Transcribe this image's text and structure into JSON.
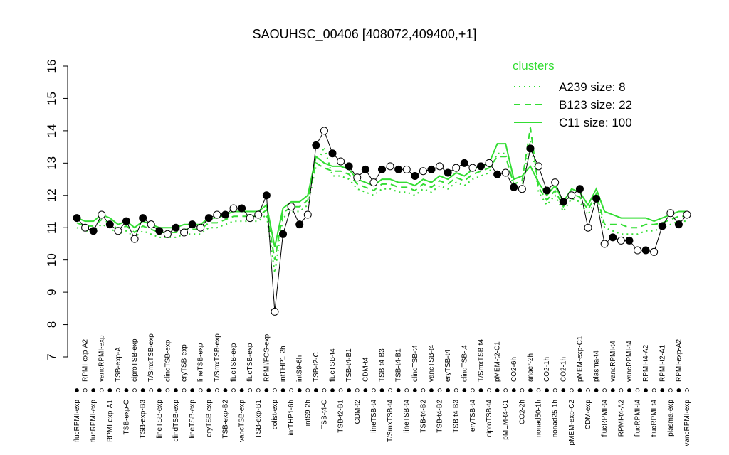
{
  "chart_data": {
    "type": "line",
    "title": "SAOUHSC_00406 [408072,409400,+1]",
    "ylim": [
      7,
      16
    ],
    "yticks": [
      7,
      8,
      9,
      10,
      11,
      12,
      13,
      14,
      15,
      16
    ],
    "categories": [
      "flucRPMI-exp",
      "RPMI-exp-A2",
      "flucRPMI-exp",
      "vancRPMI-exp",
      "RPMI-exp-A1",
      "TSB-exp-A",
      "TSB-exp-C",
      "ciproTSB-exp",
      "TSB-exp-B3",
      "T/SmxTSB-exp",
      "lineTSB-exp",
      "clindTSB-exp",
      "clindTSB-exp",
      "eryTSB-exp",
      "lineTSB-exp",
      "lineTSB-exp",
      "eryTSB-exp",
      "T/SmxTSB-exp",
      "TSB-exp-B2",
      "flucTSB-exp",
      "vancTSB-exp",
      "flucTSB-exp",
      "TSB-exp-B1",
      "RPMI/FCS-exp",
      "colist-exp",
      "intTHP1-2h",
      "intTHP1-6h",
      "intS9-6h",
      "intS9-2h",
      "TSB-t2-C",
      "TSB-t4-C",
      "flucTSB-t4",
      "TSB-t2-B1",
      "TSB-t4-B1",
      "CDM-t2",
      "CDM-t4",
      "lineTSB-t4",
      "TSB-t4-B3",
      "T/SmxTSB-t4",
      "TSB-t4-B1",
      "lineTSB-t4",
      "clindTSB-t4",
      "TSB-t4-B2",
      "vancTSB-t4",
      "TSB-t4-B2",
      "eryTSB-t4",
      "TSB-t4-B3",
      "clindTSB-t4",
      "eryTSB-t4",
      "T/SmxTSB-t4",
      "ciproTSB-t4",
      "pMEM-t2-C1",
      "pMEM-t4-C1",
      "CO2-6h",
      "CO2-2h",
      "anaer-2h",
      "nonad50-1h",
      "CO2-1h",
      "nonad25-1h",
      "CO2-1h",
      "pMEM-exp-C2",
      "pMEM-exp-C1",
      "CDM-exp",
      "plasma-t4",
      "flucRPMI-t4",
      "vancRPMI-t4",
      "RPMI-t4-A2",
      "vancRPMI-t4",
      "flucRPMI-t4",
      "RPMI-t4-A2",
      "flucRPMI-t4",
      "RPMI-t2-A1",
      "plasma-exp",
      "RPMI-exp-A2",
      "vancRPMI-exp"
    ],
    "values": [
      11.3,
      11.0,
      10.9,
      11.4,
      11.1,
      10.9,
      11.2,
      10.65,
      11.3,
      11.1,
      10.9,
      10.8,
      11.0,
      10.85,
      11.1,
      11.0,
      11.3,
      11.4,
      11.4,
      11.6,
      11.6,
      11.3,
      11.4,
      12.0,
      8.4,
      10.8,
      11.65,
      11.1,
      11.4,
      13.55,
      14.0,
      13.3,
      13.05,
      12.9,
      12.55,
      12.8,
      12.4,
      12.8,
      12.9,
      12.8,
      12.8,
      12.6,
      12.75,
      12.8,
      12.9,
      12.7,
      12.85,
      13.0,
      12.85,
      12.9,
      13.0,
      12.65,
      12.7,
      12.25,
      12.2,
      13.45,
      12.9,
      12.15,
      12.4,
      11.8,
      12.0,
      12.2,
      11.0,
      11.9,
      10.5,
      10.7,
      10.6,
      10.6,
      10.3,
      10.3,
      10.25,
      11.05,
      11.45,
      11.1,
      11.4
    ],
    "filled": [
      true,
      false,
      true,
      false,
      true,
      false,
      true,
      false,
      true,
      false,
      true,
      false,
      true,
      false,
      true,
      false,
      true,
      false,
      true,
      false,
      true,
      false,
      false,
      true,
      false,
      true,
      false,
      true,
      false,
      true,
      false,
      true,
      false,
      true,
      false,
      true,
      false,
      true,
      false,
      true,
      false,
      true,
      false,
      true,
      false,
      true,
      false,
      true,
      false,
      true,
      false,
      true,
      false,
      true,
      false,
      true,
      false,
      true,
      false,
      true,
      false,
      true,
      false,
      true,
      false,
      true,
      false,
      true,
      false,
      true,
      false,
      true,
      false,
      true,
      false
    ],
    "point_color": "#000000",
    "legend_title": "clusters",
    "series": [
      {
        "name": "A239 size: 8",
        "color": "#33dd33",
        "dash": "dotted",
        "values": [
          11.0,
          10.9,
          10.9,
          11.1,
          11.0,
          10.8,
          10.9,
          10.7,
          10.9,
          10.8,
          10.7,
          10.7,
          10.7,
          10.8,
          10.8,
          10.8,
          11.0,
          11.0,
          11.1,
          11.2,
          11.2,
          11.2,
          11.2,
          11.4,
          9.6,
          11.3,
          11.5,
          11.5,
          11.7,
          12.9,
          13.5,
          12.6,
          12.6,
          12.5,
          12.2,
          12.1,
          12.0,
          12.2,
          12.2,
          12.1,
          12.1,
          12.0,
          12.2,
          12.1,
          12.3,
          12.2,
          12.4,
          12.3,
          12.5,
          12.6,
          12.7,
          13.3,
          13.3,
          12.2,
          12.3,
          13.7,
          12.1,
          11.7,
          12.0,
          11.5,
          11.9,
          11.8,
          11.4,
          11.9,
          11.0,
          10.9,
          10.8,
          10.8,
          10.8,
          10.9,
          10.9,
          11.0,
          11.1,
          11.2,
          11.2
        ]
      },
      {
        "name": "B123 size: 22",
        "color": "#33dd33",
        "dash": "dashed",
        "values": [
          11.15,
          11.05,
          11.05,
          11.25,
          11.15,
          10.95,
          11.05,
          10.85,
          11.05,
          10.95,
          10.85,
          10.85,
          10.85,
          10.95,
          10.95,
          10.95,
          11.15,
          11.15,
          11.25,
          11.35,
          11.35,
          11.35,
          11.35,
          11.55,
          10.0,
          11.45,
          11.65,
          11.65,
          11.85,
          13.0,
          12.85,
          12.75,
          12.75,
          12.65,
          12.35,
          12.25,
          12.15,
          12.35,
          12.35,
          12.25,
          12.25,
          12.15,
          12.35,
          12.25,
          12.45,
          12.35,
          12.55,
          12.45,
          12.65,
          12.75,
          12.85,
          13.2,
          13.2,
          12.35,
          12.45,
          14.1,
          12.25,
          11.85,
          12.15,
          11.65,
          12.05,
          11.95,
          11.55,
          12.05,
          11.1,
          11.1,
          11.1,
          11.0,
          11.0,
          11.1,
          11.1,
          11.15,
          11.25,
          11.35,
          11.35
        ]
      },
      {
        "name": "C11 size: 100",
        "color": "#33dd33",
        "dash": "solid",
        "values": [
          11.3,
          11.2,
          11.2,
          11.4,
          11.3,
          11.1,
          11.2,
          11.0,
          11.2,
          11.1,
          11.0,
          11.0,
          11.0,
          11.1,
          11.1,
          11.1,
          11.3,
          11.3,
          11.4,
          11.5,
          11.5,
          11.5,
          11.5,
          11.7,
          10.4,
          11.6,
          11.8,
          11.8,
          12.0,
          13.2,
          13.0,
          12.9,
          12.9,
          12.8,
          12.5,
          12.4,
          12.3,
          12.5,
          12.5,
          12.4,
          12.4,
          12.3,
          12.5,
          12.4,
          12.6,
          12.5,
          12.7,
          12.6,
          12.8,
          12.9,
          13.0,
          13.6,
          13.6,
          12.5,
          12.6,
          12.9,
          12.4,
          12.0,
          12.3,
          11.8,
          12.2,
          12.1,
          11.7,
          12.2,
          11.5,
          11.4,
          11.3,
          11.3,
          11.3,
          11.3,
          11.2,
          11.3,
          11.4,
          11.5,
          11.5
        ]
      }
    ]
  }
}
